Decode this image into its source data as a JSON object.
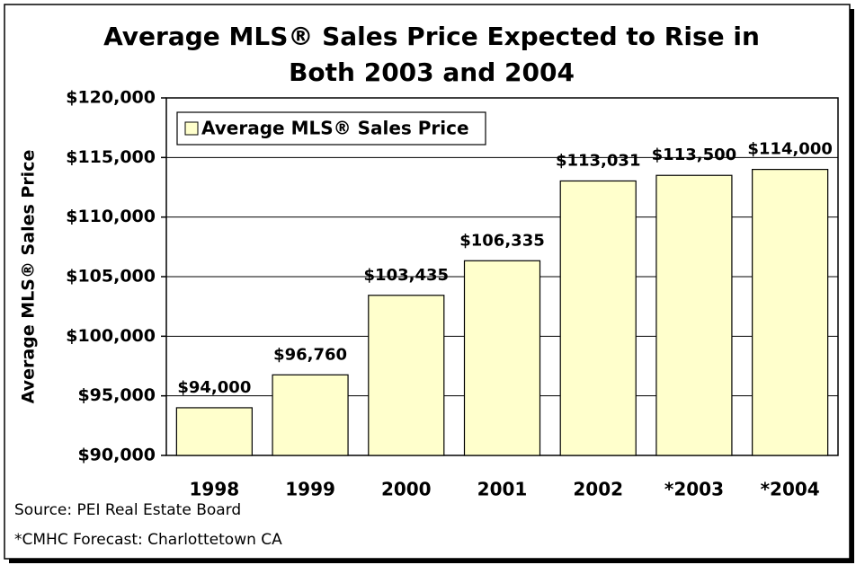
{
  "chart_data": {
    "type": "bar",
    "title": [
      "Average MLS® Sales Price Expected to Rise in",
      "Both 2003 and 2004"
    ],
    "y_label": "Average MLS® Sales Price",
    "categories": [
      "1998",
      "1999",
      "2000",
      "2001",
      "2002",
      "*2003",
      "*2004"
    ],
    "series": [
      {
        "name": "Average MLS® Sales Price",
        "color": "#ffffcc",
        "values": [
          94000,
          96760,
          103435,
          106335,
          113031,
          113500,
          114000
        ],
        "value_labels": [
          "$94,000",
          "$96,760",
          "$103,435",
          "$106,335",
          "$113,031",
          "$113,500",
          "$114,000"
        ]
      }
    ],
    "ylim": [
      90000,
      120000
    ],
    "yticks": [
      {
        "value": 90000,
        "label": "$90,000"
      },
      {
        "value": 95000,
        "label": "$95,000"
      },
      {
        "value": 100000,
        "label": "$100,000"
      },
      {
        "value": 105000,
        "label": "$105,000"
      },
      {
        "value": 110000,
        "label": "$110,000"
      },
      {
        "value": 115000,
        "label": "$115,000"
      },
      {
        "value": 120000,
        "label": "$120,000"
      }
    ],
    "grid": true,
    "legend": "top-left",
    "notes": [
      "Source: PEI Real Estate Board",
      "*CMHC Forecast: Charlottetown CA"
    ]
  }
}
